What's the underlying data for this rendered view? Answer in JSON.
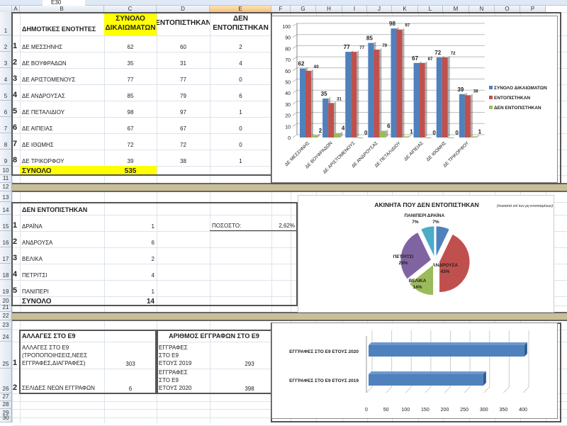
{
  "namebox": "E30",
  "columns": [
    "A",
    "B",
    "C",
    "D",
    "E",
    "F",
    "G",
    "H",
    "I",
    "J",
    "K",
    "L",
    "M",
    "N",
    "O",
    "P"
  ],
  "rows": [
    "1",
    "2",
    "3",
    "4",
    "5",
    "6",
    "7",
    "8",
    "9",
    "10",
    "11",
    "12",
    "13",
    "14",
    "15",
    "16",
    "17",
    "18",
    "19",
    "20",
    "21",
    "22",
    "23",
    "24",
    "25",
    "26",
    "27",
    "28",
    "29",
    "30"
  ],
  "table1": {
    "headers": {
      "b": "ΔΗΜΟΤΙΚΕΣ ΕΝΟΤΗΤΕΣ",
      "c": "ΣΥΝΟΛΟ ΔΙΚΑΙΩΜΑΤΩΝ",
      "d": "ΕΝΤΟΠΙΣΤΗΚΑΝ",
      "e": "ΔΕΝ ΕΝΤΟΠΙΣΤΗΚΑΝ"
    },
    "rows": [
      {
        "n": "1",
        "name": "ΔΕ ΜΕΣΣΗΝΗΣ",
        "total": "62",
        "found": "60",
        "notfound": "2"
      },
      {
        "n": "2",
        "name": "ΔΕ ΒΟΥΦΡΑΔΩΝ",
        "total": "35",
        "found": "31",
        "notfound": "4"
      },
      {
        "n": "3",
        "name": "ΔΕ ΑΡΙΣΤΟΜΕΝΟΥΣ",
        "total": "77",
        "found": "77",
        "notfound": "0"
      },
      {
        "n": "4",
        "name": "ΔΕ ΑΝΔΡΟΥΣΑΣ",
        "total": "85",
        "found": "79",
        "notfound": "6"
      },
      {
        "n": "5",
        "name": "ΔΕ ΠΕΤΑΛΙΔΙΟΥ",
        "total": "98",
        "found": "97",
        "notfound": "1"
      },
      {
        "n": "6",
        "name": "ΔΕ ΑΙΠΕΙΑΣ",
        "total": "67",
        "found": "67",
        "notfound": "0"
      },
      {
        "n": "7",
        "name": "ΔΕ ΙΘΩΜΗΣ",
        "total": "72",
        "found": "72",
        "notfound": "0"
      },
      {
        "n": "8",
        "name": "ΔΕ ΤΡΙΚΟΡΦΟΥ",
        "total": "39",
        "found": "38",
        "notfound": "1"
      }
    ],
    "total_label": "ΣΥΝΟΛΟ",
    "total_value": "535"
  },
  "table2": {
    "title": "ΔΕΝ ΕΝΤΟΠΙΣΤΗΚΑΝ",
    "rows": [
      {
        "n": "1",
        "name": "ΔΡΑΪΝΑ",
        "value": "1"
      },
      {
        "n": "2",
        "name": "ΑΝΔΡΟΥΣΑ",
        "value": "6"
      },
      {
        "n": "3",
        "name": "ΒΕΛΙΚΑ",
        "value": "2"
      },
      {
        "n": "4",
        "name": "ΠΕΤΡΙΤΣΙ",
        "value": "4"
      },
      {
        "n": "5",
        "name": "ΠΑΝΙΠΕΡΙ",
        "value": "1"
      }
    ],
    "total_label": "ΣΥΝΟΛΟ",
    "total_value": "14",
    "percent_label": "ΠΟΣΟΣΤΟ:",
    "percent_value": "2,62%"
  },
  "table3": {
    "title_left": "ΑΛΛΑΓΕΣ ΣΤΟ Ε9",
    "title_right": "ΑΡΙΘΜΟΣ ΕΓΓΡΑΦΩΝ ΣΤΟ Ε9",
    "rows": [
      {
        "n": "1",
        "name": "ΑΛΛΑΓΕΣ ΣΤΟ Ε9 (ΤΡΟΠΟΠΟΙΗΣΕΙΣ,ΝΕΕΣ ΕΓΓΡΑΦΕΣ,ΔΙΑΓΡΑΦΕΣ)",
        "value": "303",
        "rname": "ΕΓΓΡΑΦΕΣ ΣΤΟ Ε9 ΕΤΟΥΣ 2019",
        "rvalue": "293"
      },
      {
        "n": "2",
        "name": "ΣΕΛΙΔΕΣ ΝΕΩΝ ΕΓΓΡΑΦΩΝ",
        "value": "6",
        "rname": "ΕΓΓΡΑΦΕΣ ΣΤΟ Ε9 ΕΤΟΥΣ 2020",
        "rvalue": "398"
      }
    ]
  },
  "chart_data": [
    {
      "type": "bar",
      "title": "",
      "categories": [
        "ΔΕ ΜΕΣΣΗΝΗΣ",
        "ΔΕ ΒΟΥΦΡΑΔΩΝ",
        "ΔΕ ΑΡΙΣΤΟΜΕΝΟΥΣ",
        "ΔΕ ΑΝΔΡΟΥΣΑΣ",
        "ΔΕ ΠΕΤΑΛΙΔΙΟΥ",
        "ΔΕ ΑΙΠΕΙΑΣ",
        "ΔΕ ΙΘΩΜΗΣ",
        "ΔΕ ΤΡΙΚΟΡΦΟΥ"
      ],
      "series": [
        {
          "name": "ΣΥΝΟΛΟ ΔΙΚΑΙΩΜΑΤΩΝ",
          "color": "#4f81bd",
          "values": [
            62,
            35,
            77,
            85,
            98,
            67,
            72,
            39
          ]
        },
        {
          "name": "ΕΝΤΟΠΙΣΤΗΚΑΝ",
          "color": "#c0504d",
          "values": [
            60,
            31,
            77,
            79,
            97,
            67,
            72,
            38
          ]
        },
        {
          "name": "ΔΕΝ ΕΝΤΟΠΙΣΤΗΚΑΝ",
          "color": "#9bbb59",
          "values": [
            2,
            4,
            0,
            6,
            1,
            0,
            0,
            1
          ]
        }
      ],
      "ylim": [
        0,
        100
      ],
      "yticks": [
        "0",
        "10",
        "20",
        "30",
        "40",
        "50",
        "60",
        "70",
        "80",
        "90",
        "100"
      ],
      "legend": "right",
      "grid": true
    },
    {
      "type": "pie",
      "title": "ΑΚΙΝΗΤΑ ΠΟΥ ΔΕΝ ΕΝΤΟΠΙΣΤΗΚΑΝ",
      "subtitle": "(ποσοστό επί των μη εντοπισμένων)",
      "slices": [
        {
          "label": "ΔΡΑΪΝΑ",
          "value": 1,
          "pct": "7%",
          "color": "#4f81bd"
        },
        {
          "label": "ΑΝΔΡΟΥΣΑ",
          "value": 6,
          "pct": "43%",
          "color": "#c0504d"
        },
        {
          "label": "ΒΕΛΙΚΑ",
          "value": 2,
          "pct": "14%",
          "color": "#9bbb59"
        },
        {
          "label": "ΠΕΤΡΙΤΣΙ",
          "value": 4,
          "pct": "29%",
          "color": "#8064a2"
        },
        {
          "label": "ΠΑΝΙΠΕΡΙ",
          "value": 1,
          "pct": "7%",
          "color": "#4bacc6"
        }
      ]
    },
    {
      "type": "bar",
      "orientation": "horizontal",
      "categories": [
        "ΕΓΓΡΑΦΕΣ ΣΤΟ Ε9 ΕΤΟΥΣ 2020",
        "ΕΓΓΡΑΦΕΣ ΣΤΟ Ε9 ΕΤΟΥΣ 2019"
      ],
      "values": [
        398,
        293
      ],
      "color": "#4f81bd",
      "xlim": [
        0,
        400
      ],
      "xticks": [
        "0",
        "50",
        "100",
        "150",
        "200",
        "250",
        "300",
        "350",
        "400"
      ]
    }
  ]
}
